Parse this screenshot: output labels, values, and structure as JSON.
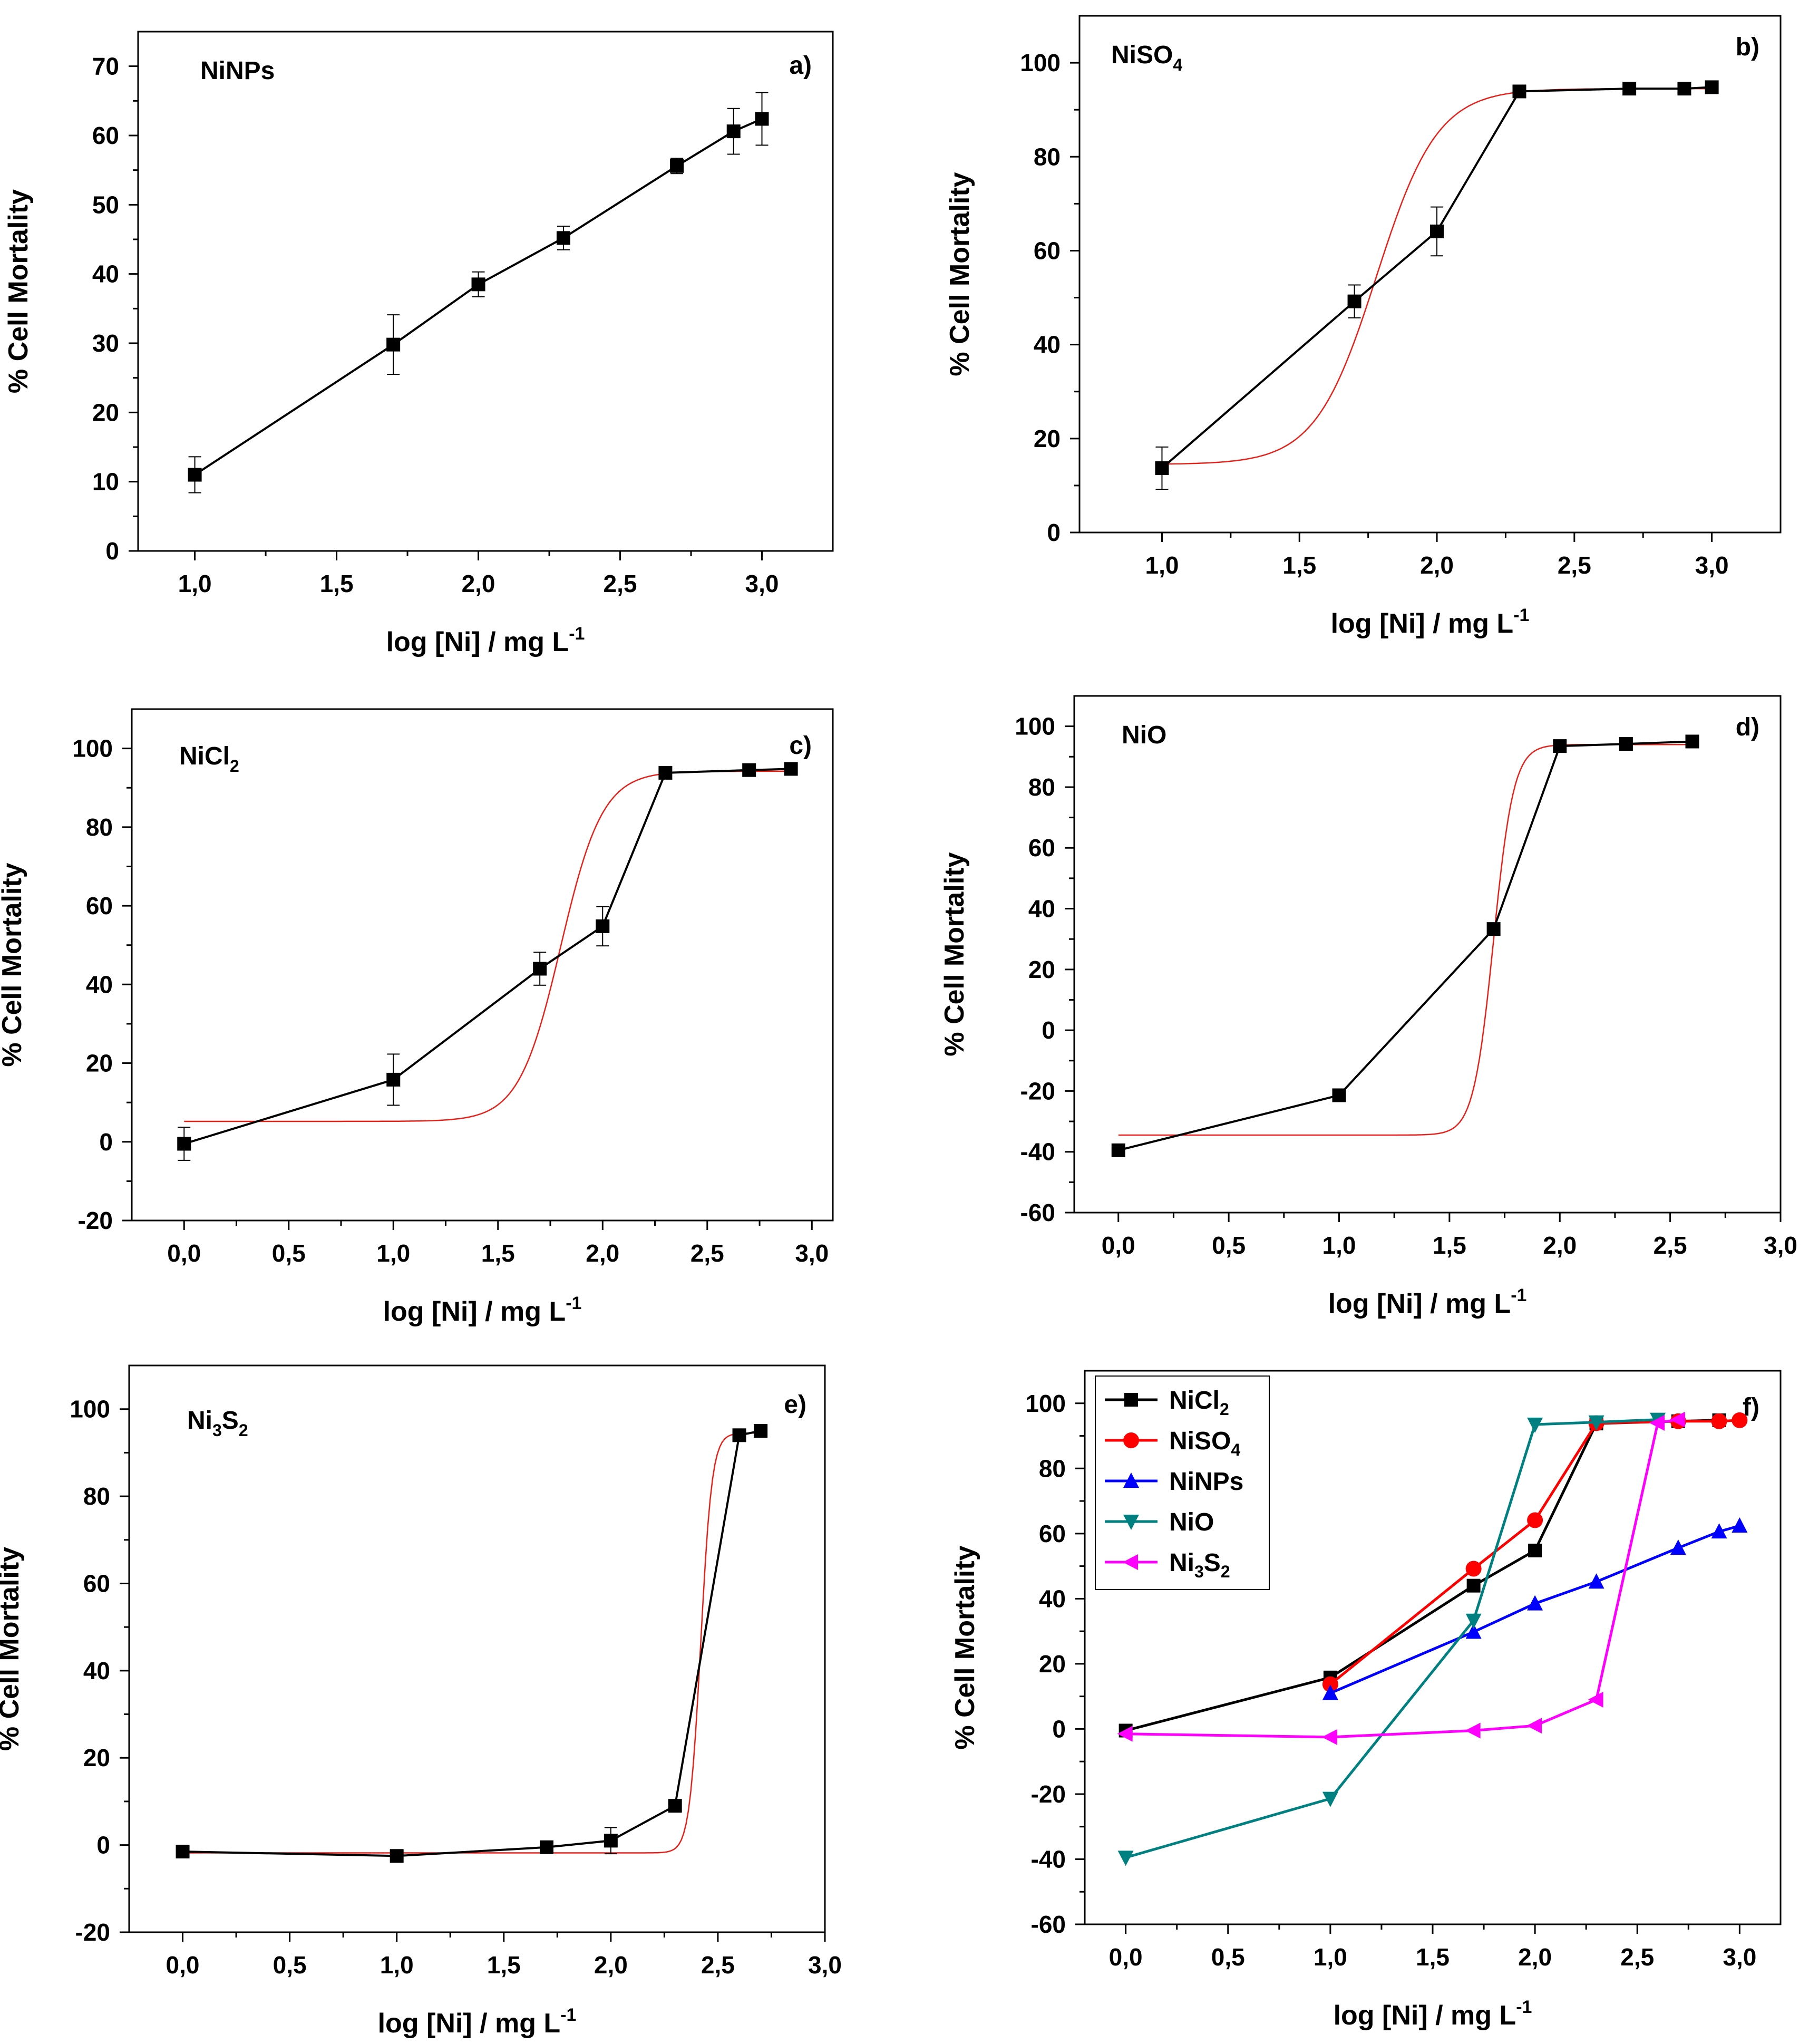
{
  "figure": {
    "colors": {
      "marker": "#000000",
      "fit": "#e8201a",
      "NiCl2": "#000000",
      "NiSO4": "#ff0000",
      "NiNPs": "#0000ff",
      "NiO": "#008080",
      "Ni3S2": "#ff00ff"
    }
  },
  "chart_data": [
    {
      "id": "a",
      "type": "line",
      "panel_label": "a)",
      "title": "NiNPs",
      "xlabel": "log [Ni] / mg L",
      "xlabel_sup": "-1",
      "ylabel": "% Cell Mortality",
      "xlim": [
        0.8,
        3.25
      ],
      "ylim": [
        0,
        75
      ],
      "xticks": [
        1.0,
        1.5,
        2.0,
        2.5,
        3.0
      ],
      "xtick_labels": [
        "1,0",
        "1,5",
        "2,0",
        "2,5",
        "3,0"
      ],
      "yticks": [
        0,
        10,
        20,
        30,
        40,
        50,
        60,
        70
      ],
      "ytick_labels": [
        "0",
        "10",
        "20",
        "30",
        "40",
        "50",
        "60",
        "70"
      ],
      "series": [
        {
          "name": "NiNPs",
          "x": [
            1.0,
            1.7,
            2.0,
            2.3,
            2.7,
            2.9,
            3.0
          ],
          "y": [
            11.0,
            29.8,
            38.5,
            45.2,
            55.6,
            60.6,
            62.4
          ],
          "err": [
            2.6,
            4.3,
            1.8,
            1.7,
            1.1,
            3.3,
            3.8
          ]
        }
      ],
      "fit": null
    },
    {
      "id": "b",
      "type": "line",
      "panel_label": "b)",
      "title": "NiSO",
      "title_sub": "4",
      "xlabel": "log [Ni] / mg L",
      "xlabel_sup": "-1",
      "ylabel": "% Cell Mortality",
      "xlim": [
        0.7,
        3.25
      ],
      "ylim": [
        0,
        110
      ],
      "xticks": [
        1.0,
        1.5,
        2.0,
        2.5,
        3.0
      ],
      "xtick_labels": [
        "1,0",
        "1,5",
        "2,0",
        "2,5",
        "3,0"
      ],
      "yticks": [
        0,
        20,
        40,
        60,
        80,
        100
      ],
      "ytick_labels": [
        "0",
        "20",
        "40",
        "60",
        "80",
        "100"
      ],
      "series": [
        {
          "name": "NiSO4",
          "x": [
            1.0,
            1.7,
            2.0,
            2.3,
            2.7,
            2.9,
            3.0
          ],
          "y": [
            13.7,
            49.2,
            64.1,
            93.9,
            94.5,
            94.5,
            94.8
          ],
          "err": [
            4.5,
            3.5,
            5.2,
            0,
            0,
            0,
            0
          ]
        }
      ],
      "fit": {
        "bottom": 14.5,
        "top": 94.5,
        "x0": 1.78,
        "k": 9.0,
        "xmin": 1.0,
        "xmax": 3.0
      }
    },
    {
      "id": "c",
      "type": "line",
      "panel_label": "c)",
      "title": "NiCl",
      "title_sub": "2",
      "xlabel": "log [Ni] / mg L",
      "xlabel_sup": "-1",
      "ylabel": "% Cell Mortality",
      "xlim": [
        -0.25,
        3.1
      ],
      "ylim": [
        -20,
        110
      ],
      "xticks": [
        0.0,
        0.5,
        1.0,
        1.5,
        2.0,
        2.5,
        3.0
      ],
      "xtick_labels": [
        "0,0",
        "0,5",
        "1,0",
        "1,5",
        "2,0",
        "2,5",
        "3,0"
      ],
      "yticks": [
        -20,
        0,
        20,
        40,
        60,
        80,
        100
      ],
      "ytick_labels": [
        "-20",
        "0",
        "20",
        "40",
        "60",
        "80",
        "100"
      ],
      "series": [
        {
          "name": "NiCl2",
          "x": [
            0.0,
            1.0,
            1.7,
            2.0,
            2.3,
            2.7,
            2.9
          ],
          "y": [
            -0.5,
            15.8,
            44.0,
            54.8,
            93.8,
            94.5,
            94.8
          ],
          "err": [
            4.2,
            6.5,
            4.2,
            5.0,
            0,
            0,
            0
          ]
        }
      ],
      "fit": {
        "bottom": 5.2,
        "top": 94.2,
        "x0": 1.8,
        "k": 10.0,
        "xmin": 0.0,
        "xmax": 2.9
      }
    },
    {
      "id": "d",
      "type": "line",
      "panel_label": "d)",
      "title": "NiO",
      "xlabel": "log [Ni] / mg L",
      "xlabel_sup": "-1",
      "ylabel": "% Cell Mortality",
      "xlim": [
        -0.2,
        3.0
      ],
      "ylim": [
        -60,
        110
      ],
      "xticks": [
        0.0,
        0.5,
        1.0,
        1.5,
        2.0,
        2.5,
        3.0
      ],
      "xtick_labels": [
        "0,0",
        "0,5",
        "1,0",
        "1,5",
        "2,0",
        "2,5",
        "3,0"
      ],
      "yticks": [
        -60,
        -40,
        -20,
        0,
        20,
        40,
        60,
        80,
        100
      ],
      "ytick_labels": [
        "-60",
        "-40",
        "-20",
        "0",
        "20",
        "40",
        "60",
        "80",
        "100"
      ],
      "series": [
        {
          "name": "NiO",
          "x": [
            0.0,
            1.0,
            1.7,
            2.0,
            2.3,
            2.6
          ],
          "y": [
            -39.5,
            -21.4,
            33.3,
            93.5,
            94.2,
            95.0
          ],
          "err": [
            0,
            0,
            0,
            0,
            0,
            0
          ]
        }
      ],
      "fit": {
        "bottom": -34.5,
        "top": 94.0,
        "x0": 1.7,
        "k": 22.0,
        "xmin": 0.0,
        "xmax": 2.6
      }
    },
    {
      "id": "e",
      "type": "line",
      "panel_label": "e)",
      "title": "Ni",
      "title_parts": [
        "Ni",
        "3",
        "S",
        "2"
      ],
      "xlabel": "log [Ni] / mg L",
      "xlabel_sup": "-1",
      "ylabel": "% Cell Mortality",
      "xlim": [
        -0.25,
        3.0
      ],
      "ylim": [
        -20,
        110
      ],
      "xticks": [
        0.0,
        0.5,
        1.0,
        1.5,
        2.0,
        2.5,
        3.0
      ],
      "xtick_labels": [
        "0,0",
        "0,5",
        "1,0",
        "1,5",
        "2,0",
        "2,5",
        "3,0"
      ],
      "yticks": [
        -20,
        0,
        20,
        40,
        60,
        80,
        100
      ],
      "ytick_labels": [
        "-20",
        "0",
        "20",
        "40",
        "60",
        "80",
        "100"
      ],
      "series": [
        {
          "name": "Ni3S2",
          "x": [
            0.0,
            1.0,
            1.7,
            2.0,
            2.3,
            2.6,
            2.7
          ],
          "y": [
            -1.5,
            -2.5,
            -0.5,
            1.0,
            9.0,
            94.0,
            95.0
          ],
          "err": [
            0,
            0,
            0,
            3.0,
            0,
            0,
            0
          ]
        }
      ],
      "fit": {
        "bottom": -1.8,
        "top": 94.5,
        "x0": 2.42,
        "k": 38.0,
        "xmin": 0.0,
        "xmax": 2.7
      }
    },
    {
      "id": "f",
      "type": "line",
      "panel_label": "f)",
      "xlabel": "log [Ni] / mg L",
      "xlabel_sup": "-1",
      "ylabel": "% Cell Mortality",
      "xlim": [
        -0.2,
        3.2
      ],
      "ylim": [
        -60,
        110
      ],
      "xticks": [
        0.0,
        0.5,
        1.0,
        1.5,
        2.0,
        2.5,
        3.0
      ],
      "xtick_labels": [
        "0,0",
        "0,5",
        "1,0",
        "1,5",
        "2,0",
        "2,5",
        "3,0"
      ],
      "yticks": [
        -60,
        -40,
        -20,
        0,
        20,
        40,
        60,
        80,
        100
      ],
      "ytick_labels": [
        "-60",
        "-40",
        "-20",
        "0",
        "20",
        "40",
        "60",
        "80",
        "100"
      ],
      "legend": {
        "placement": "top-left",
        "entries": [
          {
            "series": "NiCl2",
            "base": "NiCl",
            "sub": "2"
          },
          {
            "series": "NiSO4",
            "base": "NiSO",
            "sub": "4"
          },
          {
            "series": "NiNPs",
            "base": "NiNPs",
            "sub": ""
          },
          {
            "series": "NiO",
            "base": "NiO",
            "sub": ""
          },
          {
            "series": "Ni3S2",
            "base": "Ni",
            "sub": "3",
            "base2": "S",
            "sub2": "2"
          }
        ]
      },
      "series": [
        {
          "name": "NiCl2",
          "marker": "square",
          "x": [
            0.0,
            1.0,
            1.7,
            2.0,
            2.3,
            2.7,
            2.9
          ],
          "y": [
            -0.5,
            15.8,
            44.0,
            54.8,
            93.8,
            94.5,
            94.8
          ]
        },
        {
          "name": "NiSO4",
          "marker": "circle",
          "x": [
            1.0,
            1.7,
            2.0,
            2.3,
            2.7,
            2.9,
            3.0
          ],
          "y": [
            13.7,
            49.2,
            64.1,
            93.9,
            94.5,
            94.5,
            94.8
          ]
        },
        {
          "name": "NiNPs",
          "marker": "triangle-up",
          "x": [
            1.0,
            1.7,
            2.0,
            2.3,
            2.7,
            2.9,
            3.0
          ],
          "y": [
            11.0,
            29.8,
            38.5,
            45.2,
            55.6,
            60.6,
            62.4
          ]
        },
        {
          "name": "NiO",
          "marker": "triangle-down",
          "x": [
            0.0,
            1.0,
            1.7,
            2.0,
            2.3,
            2.6
          ],
          "y": [
            -39.5,
            -21.4,
            33.3,
            93.5,
            94.2,
            95.0
          ]
        },
        {
          "name": "Ni3S2",
          "marker": "triangle-left",
          "x": [
            0.0,
            1.0,
            1.7,
            2.0,
            2.3,
            2.6,
            2.7
          ],
          "y": [
            -1.5,
            -2.5,
            -0.5,
            1.0,
            9.0,
            94.0,
            95.0
          ]
        }
      ]
    }
  ]
}
